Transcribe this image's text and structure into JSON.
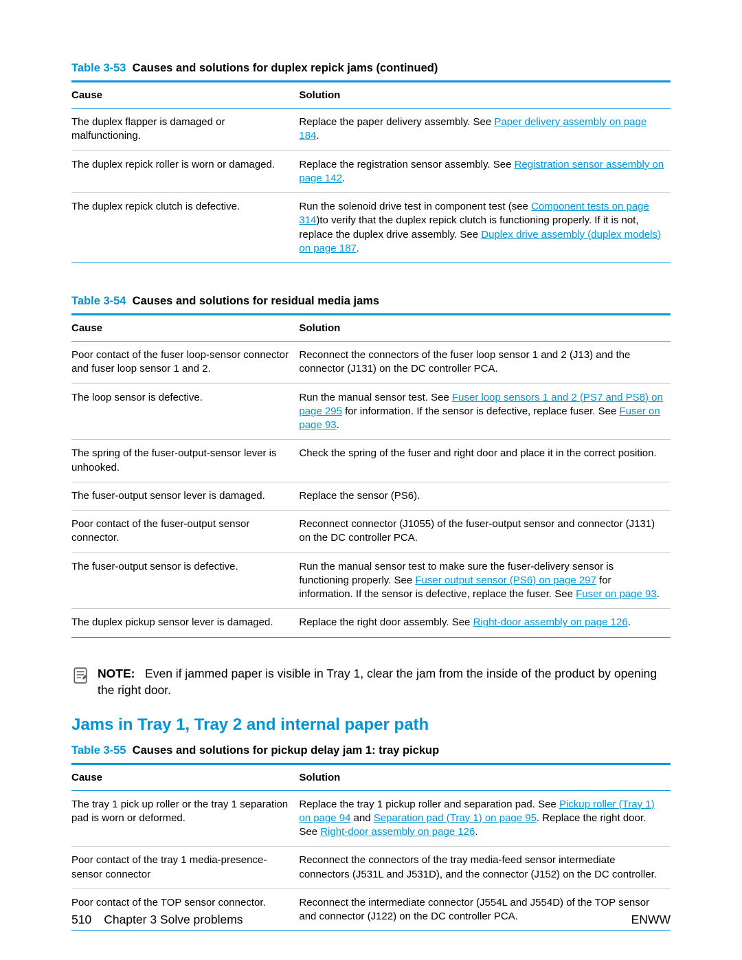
{
  "colors": {
    "accent": "#0096d6",
    "rule": "#c8c8c8",
    "text": "#000000",
    "background": "#ffffff"
  },
  "typography": {
    "body_pt": 11,
    "caption_pt": 12,
    "heading_pt": 18,
    "family": "Arial"
  },
  "table53": {
    "caption_prefix": "Table 3-53",
    "caption": "Causes and solutions for duplex repick jams (continued)",
    "columns": [
      "Cause",
      "Solution"
    ],
    "column_widths_pct": [
      38,
      62
    ],
    "rows": [
      {
        "cause": "The duplex flapper is damaged or malfunctioning.",
        "solution": [
          {
            "t": "Replace the paper delivery assembly. See "
          },
          {
            "t": "Paper delivery assembly on page 184",
            "link": true
          },
          {
            "t": "."
          }
        ]
      },
      {
        "cause": "The duplex repick roller is worn or damaged.",
        "solution": [
          {
            "t": "Replace the registration sensor assembly. See "
          },
          {
            "t": "Registration sensor assembly on page 142",
            "link": true
          },
          {
            "t": "."
          }
        ]
      },
      {
        "cause": "The duplex repick clutch is defective.",
        "solution": [
          {
            "t": "Run the solenoid drive test in component test (see "
          },
          {
            "t": "Component tests on page 314",
            "link": true
          },
          {
            "t": ")to verify that the duplex repick clutch is functioning properly. If it is not, replace the duplex drive assembly. See "
          },
          {
            "t": "Duplex drive assembly (duplex models) on page 187",
            "link": true
          },
          {
            "t": "."
          }
        ]
      }
    ]
  },
  "table54": {
    "caption_prefix": "Table 3-54",
    "caption": "Causes and solutions for residual media jams",
    "columns": [
      "Cause",
      "Solution"
    ],
    "column_widths_pct": [
      38,
      62
    ],
    "rows": [
      {
        "cause": "Poor contact of the fuser loop-sensor connector and fuser loop sensor 1 and 2.",
        "solution": [
          {
            "t": "Reconnect the connectors of the fuser loop sensor 1 and 2 (J13) and the connector (J131) on the DC controller PCA."
          }
        ]
      },
      {
        "cause": "The loop sensor is defective.",
        "solution": [
          {
            "t": "Run the manual sensor test. See "
          },
          {
            "t": "Fuser loop sensors 1 and 2 (PS7 and PS8) on page 295",
            "link": true
          },
          {
            "t": " for information. If the sensor is defective, replace fuser. See "
          },
          {
            "t": "Fuser on page 93",
            "link": true
          },
          {
            "t": "."
          }
        ]
      },
      {
        "cause": "The spring of the fuser-output-sensor lever is unhooked.",
        "solution": [
          {
            "t": "Check the spring of the fuser and right door and place it in the correct position."
          }
        ]
      },
      {
        "cause": "The fuser-output sensor lever is damaged.",
        "solution": [
          {
            "t": "Replace the sensor (PS6)."
          }
        ]
      },
      {
        "cause": "Poor contact of the fuser-output sensor connector.",
        "solution": [
          {
            "t": "Reconnect connector (J1055) of the fuser-output sensor and connector (J131) on the DC controller PCA."
          }
        ]
      },
      {
        "cause": "The fuser-output sensor is defective.",
        "solution": [
          {
            "t": "Run the manual sensor test to make sure the fuser-delivery sensor is functioning properly. See "
          },
          {
            "t": "Fuser output sensor (PS6) on page 297",
            "link": true
          },
          {
            "t": " for information. If the sensor is defective, replace the fuser. See "
          },
          {
            "t": "Fuser on page 93",
            "link": true
          },
          {
            "t": "."
          }
        ]
      },
      {
        "cause": "The duplex pickup sensor lever is damaged.",
        "solution": [
          {
            "t": "Replace the right door assembly. See "
          },
          {
            "t": "Right-door assembly on page 126",
            "link": true
          },
          {
            "t": "."
          }
        ]
      }
    ]
  },
  "note": {
    "label": "NOTE:",
    "text": "Even if jammed paper is visible in Tray 1, clear the jam from the inside of the product by opening the right door."
  },
  "section_heading": "Jams in Tray 1, Tray 2 and internal paper path",
  "table55": {
    "caption_prefix": "Table 3-55",
    "caption": "Causes and solutions for pickup delay jam 1: tray pickup",
    "columns": [
      "Cause",
      "Solution"
    ],
    "column_widths_pct": [
      38,
      62
    ],
    "rows": [
      {
        "cause": "The tray 1 pick up roller or the tray 1 separation pad is worn or deformed.",
        "solution": [
          {
            "t": "Replace the tray 1 pickup roller and separation pad. See "
          },
          {
            "t": "Pickup roller (Tray 1) on page 94",
            "link": true
          },
          {
            "t": " and "
          },
          {
            "t": "Separation pad (Tray 1) on page 95",
            "link": true
          },
          {
            "t": ". Replace the right door. See "
          },
          {
            "t": "Right-door assembly on page 126",
            "link": true
          },
          {
            "t": "."
          }
        ]
      },
      {
        "cause": "Poor contact of the tray 1 media-presence-sensor connector",
        "solution": [
          {
            "t": "Reconnect the connectors of the tray media-feed sensor intermediate connectors (J531L and J531D), and the connector (J152) on the DC controller."
          }
        ]
      },
      {
        "cause": "Poor contact of the TOP sensor connector.",
        "solution": [
          {
            "t": "Reconnect the intermediate connector (J554L and J554D) of the TOP sensor and connector (J122) on the DC controller PCA."
          }
        ]
      }
    ]
  },
  "footer": {
    "page_number": "510",
    "chapter": "Chapter 3   Solve problems",
    "mark": "ENWW"
  }
}
